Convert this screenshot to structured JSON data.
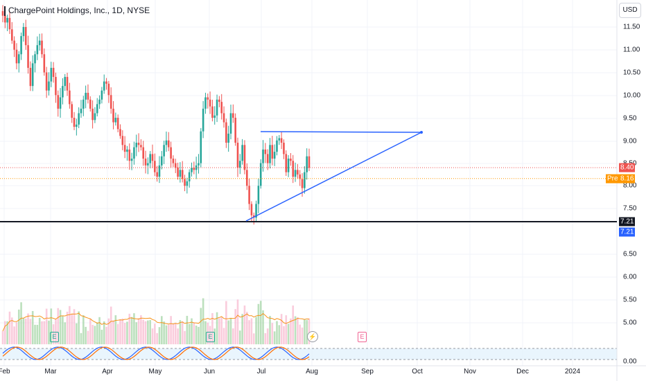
{
  "header": {
    "title": "ChargePoint Holdings, Inc., 1D, NYSE",
    "currency": "USD"
  },
  "price_axis": {
    "ticks": [
      "11.50",
      "11.00",
      "10.50",
      "10.00",
      "9.50",
      "9.00",
      "8.50",
      "8.00",
      "7.50",
      "6.50",
      "6.00",
      "5.50",
      "5.00",
      "0.00"
    ]
  },
  "time_axis": {
    "ticks": [
      "Feb",
      "Mar",
      "Apr",
      "May",
      "Jun",
      "Jul",
      "Aug",
      "Sep",
      "Oct",
      "Nov",
      "Dec",
      "2024"
    ]
  },
  "labels": {
    "last_price": "8.40",
    "pre_tag": "Pre",
    "pre_price": "8.16",
    "support_a": "7.21",
    "support_b": "7.21"
  },
  "colors": {
    "up": "#26a69a",
    "down": "#ef5350",
    "trendline": "#2962ff",
    "support": "#131722",
    "volume_ma": "#f7931a",
    "earnings_green": "#22ab94",
    "earnings_red": "#f06292"
  },
  "earnings_markers": [
    {
      "label": "E",
      "month": "Mar",
      "status": "reported"
    },
    {
      "label": "E",
      "month": "Jun",
      "status": "reported"
    },
    {
      "label": "E",
      "month": "Aug",
      "status": "upcoming"
    }
  ],
  "chart_data": {
    "type": "candlestick",
    "title": "ChargePoint Holdings, Inc., 1D, NYSE",
    "ylim": [
      7.0,
      11.8
    ],
    "close_series": [
      11.75,
      11.6,
      11.7,
      11.45,
      11.2,
      11.0,
      10.7,
      10.9,
      11.3,
      11.5,
      11.1,
      10.6,
      10.2,
      10.7,
      10.9,
      11.1,
      11.2,
      10.9,
      10.5,
      10.1,
      10.3,
      10.6,
      10.4,
      10.0,
      9.7,
      9.95,
      10.2,
      10.4,
      10.1,
      9.8,
      9.5,
      9.3,
      9.35,
      9.6,
      9.7,
      9.9,
      10.05,
      9.9,
      9.7,
      9.45,
      9.6,
      9.8,
      9.9,
      10.1,
      10.3,
      10.25,
      10.0,
      9.7,
      9.4,
      9.5,
      9.25,
      9.1,
      8.9,
      8.75,
      8.8,
      8.55,
      8.6,
      8.85,
      8.95,
      8.9,
      8.85,
      8.6,
      8.45,
      8.5,
      8.7,
      8.55,
      8.3,
      8.2,
      8.45,
      8.65,
      8.9,
      9.0,
      8.85,
      8.6,
      8.5,
      8.4,
      8.2,
      8.35,
      8.15,
      8.0,
      8.1,
      8.3,
      8.4,
      8.35,
      8.45,
      8.5,
      9.2,
      9.7,
      9.95,
      9.9,
      9.75,
      9.5,
      9.55,
      9.9,
      9.85,
      9.6,
      9.4,
      8.95,
      9.15,
      9.6,
      9.5,
      8.95,
      8.4,
      8.55,
      8.9,
      8.35,
      8.0,
      7.6,
      7.35,
      7.3,
      7.6,
      8.0,
      8.5,
      8.8,
      8.7,
      8.5,
      8.9,
      8.6,
      8.75,
      9.0,
      9.05,
      8.95,
      8.7,
      8.3,
      8.6,
      8.55,
      8.2,
      8.35,
      8.25,
      8.15,
      7.95,
      8.3,
      8.65,
      8.4
    ],
    "annotations": {
      "resistance_line": {
        "from": "Jul",
        "to": "Oct",
        "price": 9.2
      },
      "rising_trendline": {
        "from_price": 7.21,
        "to_price": 9.2
      },
      "support_line": {
        "price": 7.21
      }
    },
    "last_price": 8.4,
    "premarket_price": 8.16,
    "indicators": [
      "volume",
      "volume-ma",
      "stochastic-rsi"
    ]
  }
}
